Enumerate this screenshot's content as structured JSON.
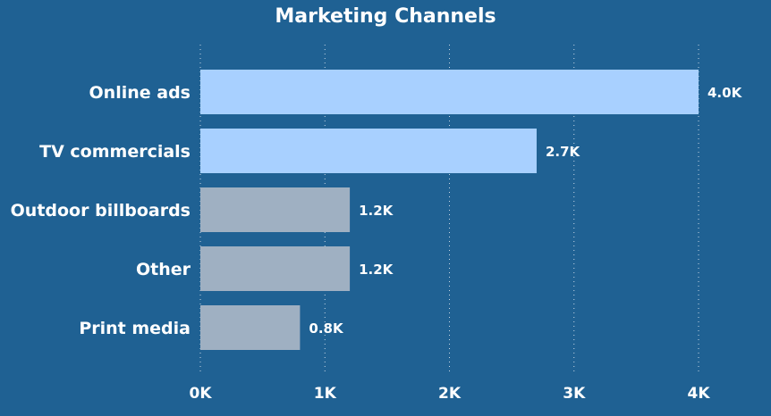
{
  "chart_data": {
    "type": "bar",
    "orientation": "horizontal",
    "title": "Marketing Channels",
    "categories": [
      "Online ads",
      "TV commercials",
      "Outdoor billboards",
      "Other",
      "Print media"
    ],
    "values": [
      4.0,
      2.7,
      1.2,
      1.2,
      0.8
    ],
    "value_labels": [
      "4.0K",
      "2.7K",
      "1.2K",
      "1.2K",
      "0.8K"
    ],
    "bar_colors": [
      "#a8d0ff",
      "#a8d0ff",
      "#9fb0c2",
      "#9fb0c2",
      "#9fb0c2"
    ],
    "xlim": [
      0,
      4.0
    ],
    "x_ticks": [
      0,
      1,
      2,
      3,
      4
    ],
    "x_tick_labels": [
      "0K",
      "1K",
      "2K",
      "3K",
      "4K"
    ],
    "xlabel": "",
    "ylabel": "",
    "grid": "vertical-dotted",
    "legend": "none",
    "background": "#1f6193",
    "text_color": "#ffffff"
  }
}
